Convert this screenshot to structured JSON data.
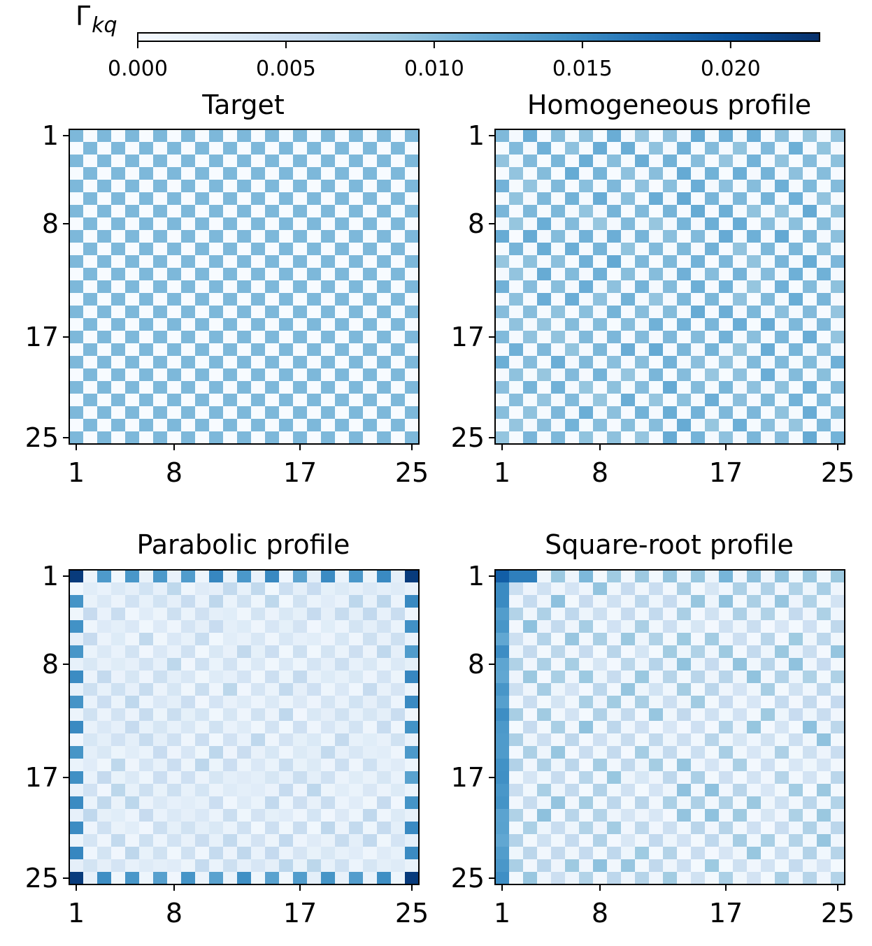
{
  "colorbar": {
    "label": "Γ",
    "label_sub": "kq",
    "ticks": [
      "0.000",
      "0.005",
      "0.010",
      "0.015",
      "0.020"
    ],
    "tick_values": [
      0.0,
      0.005,
      0.01,
      0.015,
      0.02
    ],
    "range": [
      0.0,
      0.023
    ],
    "colormap": "Blues"
  },
  "chart_data": [
    {
      "type": "heatmap",
      "title": "Target",
      "size": 25,
      "xticks": [
        "1",
        "8",
        "17",
        "25"
      ],
      "yticks": [
        "1",
        "8",
        "17",
        "25"
      ],
      "pattern": "checkerboard",
      "on_value": 0.0105,
      "off_value": 0.0
    },
    {
      "type": "heatmap",
      "title": "Homogeneous profile",
      "size": 25,
      "xticks": [
        "1",
        "8",
        "17",
        "25"
      ],
      "yticks": [
        "1",
        "8",
        "17",
        "25"
      ],
      "pattern": "checkerboard",
      "on_value": 0.0105,
      "off_value": 0.0004,
      "variation": 0.0015
    },
    {
      "type": "heatmap",
      "title": "Parabolic profile",
      "size": 25,
      "xticks": [
        "1",
        "8",
        "17",
        "25"
      ],
      "yticks": [
        "1",
        "8",
        "17",
        "25"
      ],
      "pattern": "checkerboard",
      "edge_value": 0.014,
      "corner_value": 0.022,
      "center_value": 0.0045,
      "off_value": 0.0015
    },
    {
      "type": "heatmap",
      "title": "Square-root profile",
      "size": 25,
      "xticks": [
        "1",
        "8",
        "17",
        "25"
      ],
      "yticks": [
        "1",
        "8",
        "17",
        "25"
      ],
      "pattern": "checkerboard",
      "corner_value": 0.019,
      "first_row_value": 0.016,
      "first_col_value": 0.015,
      "interior_value": 0.008,
      "off_value": 0.0008
    }
  ]
}
